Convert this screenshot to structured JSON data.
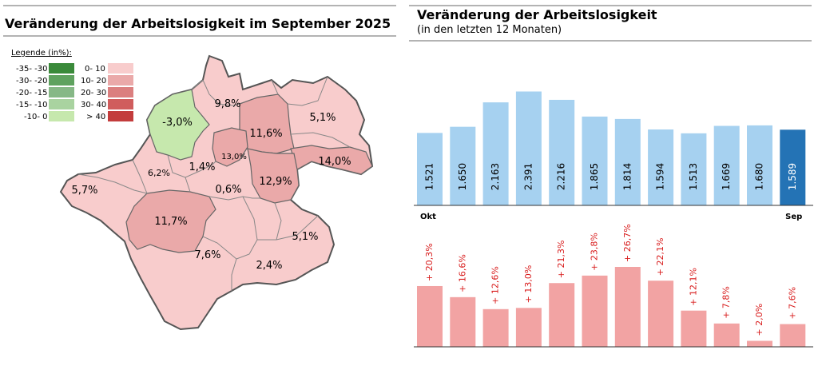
{
  "left_panel": {
    "title": "Veränderung der Arbeitslosigkeit im September 2025",
    "legend": {
      "title": "Legende (in%):",
      "negative": [
        {
          "label": "-35- -30",
          "color": "#3a8a3a"
        },
        {
          "label": "-30- -20",
          "color": "#5fa25f"
        },
        {
          "label": "-20- -15",
          "color": "#86b886"
        },
        {
          "label": "-15- -10",
          "color": "#a9d3a0"
        },
        {
          "label": "-10- 0",
          "color": "#c6e8ad"
        }
      ],
      "positive": [
        {
          "label": "0- 10",
          "color": "#f8cccc"
        },
        {
          "label": "10- 20",
          "color": "#eaa9a9"
        },
        {
          "label": "20- 30",
          "color": "#db7f7f"
        },
        {
          "label": "30- 40",
          "color": "#d05d5d"
        },
        {
          "label": "> 40",
          "color": "#c33c3c"
        }
      ]
    },
    "map_labels": [
      "-3,0%",
      "9,8%",
      "5,1%",
      "11,6%",
      "13,0%",
      "1,4%",
      "6,2%",
      "14,0%",
      "12,9%",
      "5,7%",
      "0,6%",
      "11,7%",
      "5,1%",
      "7,6%",
      "2,4%"
    ]
  },
  "chart_data": [
    {
      "type": "bar",
      "title": "Veränderung der Arbeitslosigkeit",
      "subtitle": "(in den letzten 12 Monaten)",
      "categories": [
        "Okt",
        "",
        "",
        "",
        "",
        "",
        "",
        "",
        "",
        "",
        "",
        "Sep"
      ],
      "values": [
        1521,
        1650,
        2163,
        2391,
        2216,
        1865,
        1814,
        1594,
        1513,
        1669,
        1680,
        1589
      ],
      "value_labels": [
        "1.521",
        "1.650",
        "2.163",
        "2.391",
        "2.216",
        "1.865",
        "1.814",
        "1.594",
        "1.513",
        "1.669",
        "1.680",
        "1.589"
      ],
      "ylim": [
        0,
        2600
      ],
      "color": "#a6d1f0",
      "highlight_color": "#2473b5",
      "highlight_index": 11
    },
    {
      "type": "bar",
      "values": [
        20.3,
        16.6,
        12.6,
        13.0,
        21.3,
        23.8,
        26.7,
        22.1,
        12.1,
        7.8,
        2.0,
        7.6
      ],
      "value_labels": [
        "+ 20,3%",
        "+ 16,6%",
        "+ 12,6%",
        "+ 13,0%",
        "+ 21,3%",
        "+ 23,8%",
        "+ 26,7%",
        "+ 22,1%",
        "+ 12,1%",
        "+ 7,8%",
        "+ 2,0%",
        "+ 7,6%"
      ],
      "ylim": [
        0,
        30
      ],
      "color": "#f2a3a3",
      "label_color": "#d81b1b"
    }
  ]
}
